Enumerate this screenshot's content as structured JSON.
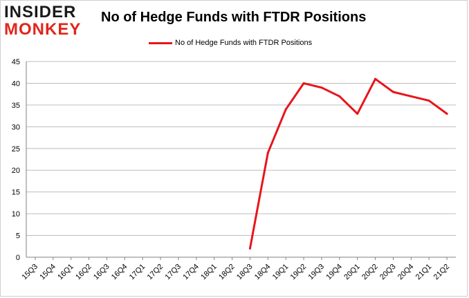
{
  "logo": {
    "line1": "INSIDER",
    "line2": "MONKEY"
  },
  "colors": {
    "series": "#e8141b",
    "grid": "#bdbdbd",
    "axis": "#808080",
    "brand_red": "#e0261b"
  },
  "chart_data": {
    "type": "line",
    "title": "No of Hedge Funds with FTDR Positions",
    "xlabel": "",
    "ylabel": "",
    "legend_position": "top",
    "grid": true,
    "ylim": [
      0,
      45
    ],
    "yticks": [
      0,
      5,
      10,
      15,
      20,
      25,
      30,
      35,
      40,
      45
    ],
    "categories": [
      "15Q3",
      "15Q4",
      "16Q1",
      "16Q2",
      "16Q3",
      "16Q4",
      "17Q1",
      "17Q2",
      "17Q3",
      "17Q4",
      "18Q1",
      "18Q2",
      "18Q3",
      "18Q4",
      "19Q1",
      "19Q2",
      "19Q3",
      "19Q4",
      "20Q1",
      "20Q2",
      "20Q3",
      "20Q4",
      "21Q1",
      "21Q2"
    ],
    "series": [
      {
        "name": "No of Hedge Funds with FTDR Positions",
        "values": [
          null,
          null,
          null,
          null,
          null,
          null,
          null,
          null,
          null,
          null,
          null,
          null,
          2,
          24,
          34,
          40,
          39,
          37,
          33,
          41,
          38,
          37,
          36,
          33
        ]
      }
    ]
  }
}
